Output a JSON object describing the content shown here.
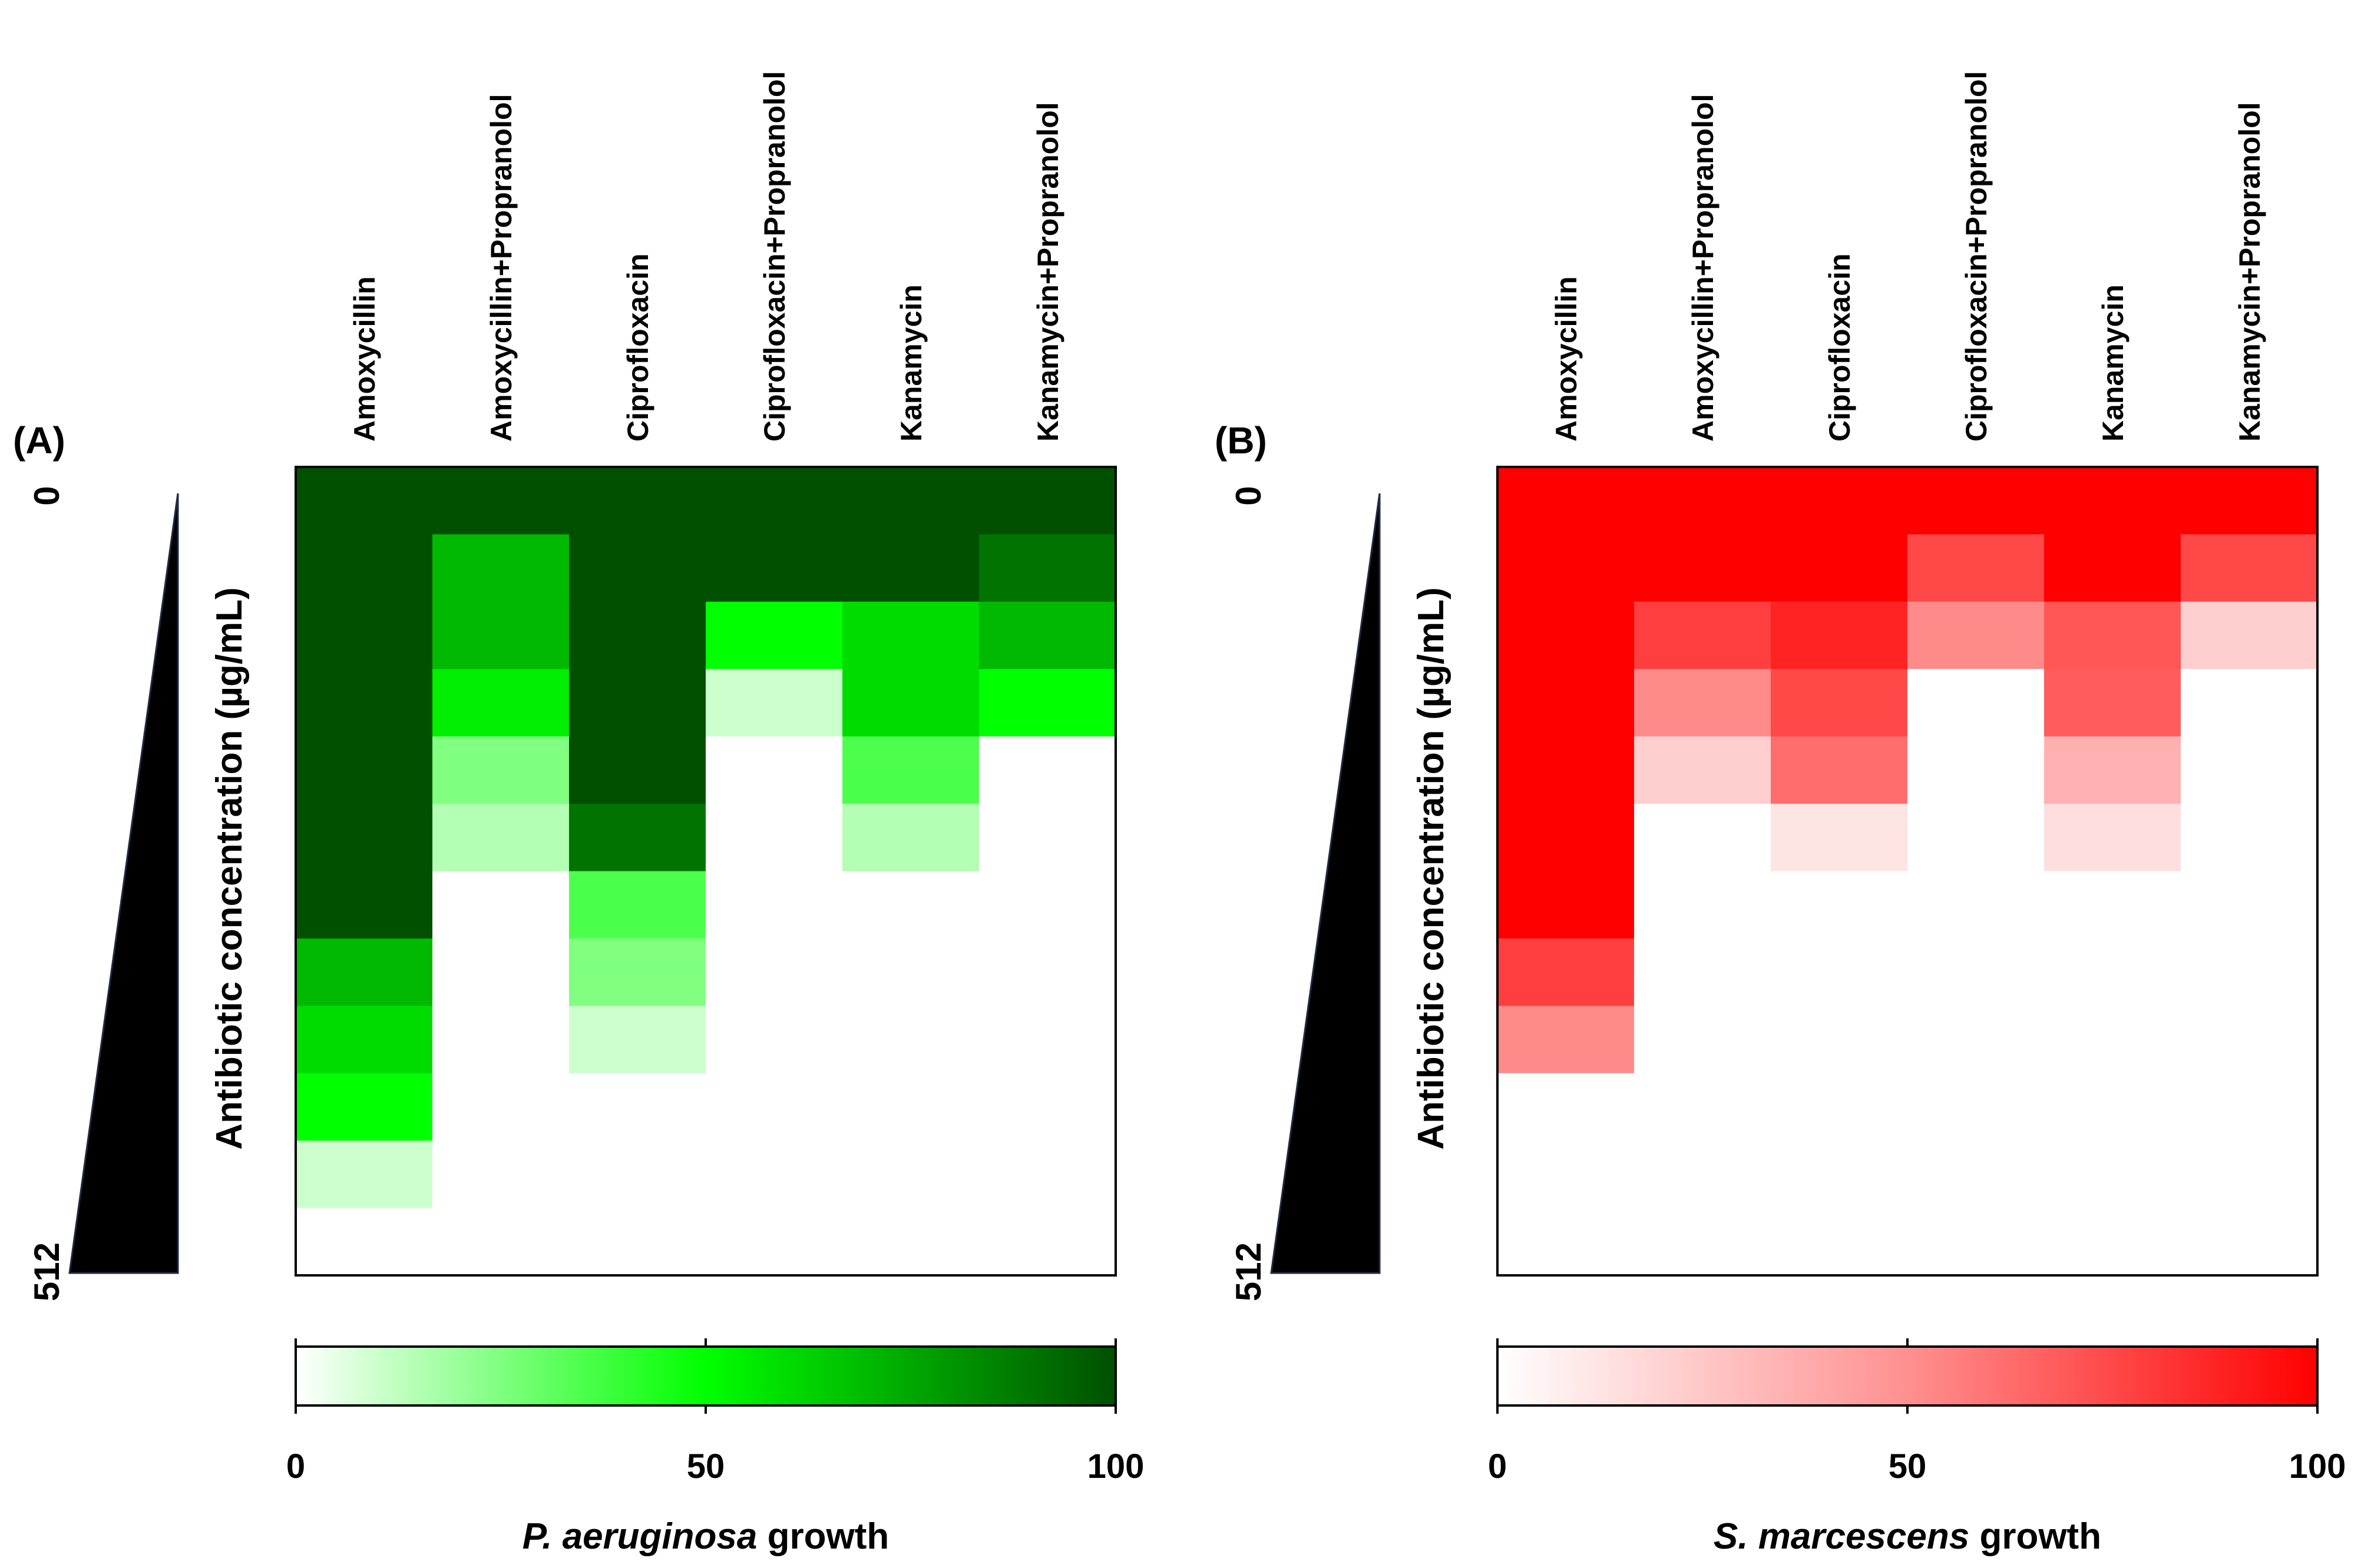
{
  "chart_data": [
    {
      "type": "heatmap",
      "panel_label": "(A)",
      "columns": [
        "Amoxycillin",
        "Amoxycillin+Propranolol",
        "Ciprofloxacin",
        "Ciprofloxacin+Propranolol",
        "Kanamycin",
        "Kanamycin+Propranolol"
      ],
      "ylabel": "Antibiotic concentration (µg/mL)",
      "gradient_top_label": "0",
      "gradient_bottom_label": "512",
      "colorbar": {
        "title_italic": "P. aeruginosa",
        "title_rest": " growth",
        "min": 0,
        "max": 100,
        "ticks": [
          "0",
          "50",
          "100"
        ],
        "colors": [
          "#ffffff",
          "#00ff00",
          "#005000"
        ]
      },
      "values": [
        [
          100,
          100,
          100,
          100,
          100,
          100
        ],
        [
          100,
          70,
          100,
          100,
          100,
          90
        ],
        [
          100,
          70,
          100,
          50,
          60,
          70
        ],
        [
          100,
          55,
          100,
          10,
          60,
          50
        ],
        [
          100,
          25,
          100,
          0,
          35,
          0
        ],
        [
          100,
          15,
          90,
          0,
          15,
          0
        ],
        [
          100,
          0,
          35,
          0,
          0,
          0
        ],
        [
          70,
          0,
          25,
          0,
          0,
          0
        ],
        [
          60,
          0,
          10,
          0,
          0,
          0
        ],
        [
          50,
          0,
          0,
          0,
          0,
          0
        ],
        [
          10,
          0,
          0,
          0,
          0,
          0
        ],
        [
          0,
          0,
          0,
          0,
          0,
          0
        ]
      ]
    },
    {
      "type": "heatmap",
      "panel_label": "(B)",
      "columns": [
        "Amoxycillin",
        "Amoxycillin+Propranolol",
        "Ciprofloxacin",
        "Ciprofloxacin+Propranolol",
        "Kanamycin",
        "Kanamycin+Propranolol"
      ],
      "ylabel": "Antibiotic concentration (µg/mL)",
      "gradient_top_label": "0",
      "gradient_bottom_label": "512",
      "colorbar": {
        "title_italic": "S. marcescens",
        "title_rest": " growth",
        "min": 0,
        "max": 100,
        "ticks": [
          "0",
          "50",
          "100"
        ],
        "colors": [
          "#ffffff",
          "#ff9090",
          "#ff0000"
        ]
      },
      "values": [
        [
          100,
          100,
          100,
          100,
          100,
          100
        ],
        [
          100,
          100,
          100,
          75,
          100,
          75
        ],
        [
          100,
          78,
          88,
          52,
          70,
          22
        ],
        [
          100,
          52,
          75,
          0,
          68,
          0
        ],
        [
          100,
          22,
          62,
          0,
          35,
          0
        ],
        [
          100,
          0,
          12,
          0,
          15,
          0
        ],
        [
          100,
          0,
          0,
          0,
          0,
          0
        ],
        [
          78,
          0,
          0,
          0,
          0,
          0
        ],
        [
          52,
          0,
          0,
          0,
          0,
          0
        ],
        [
          0,
          0,
          0,
          0,
          0,
          0
        ],
        [
          0,
          0,
          0,
          0,
          0,
          0
        ],
        [
          0,
          0,
          0,
          0,
          0,
          0
        ]
      ]
    }
  ]
}
